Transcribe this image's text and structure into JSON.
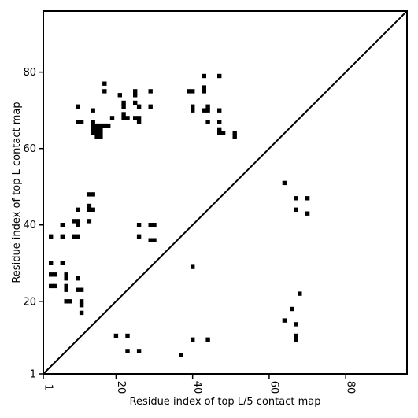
{
  "chart_data": {
    "type": "scatter",
    "title": "",
    "xlabel": "Residue index of top L/5 contact map",
    "ylabel": "Residue index of top L contact map",
    "xlim": [
      1,
      96
    ],
    "ylim": [
      1,
      96
    ],
    "x_ticks": [
      1,
      20,
      40,
      60,
      80
    ],
    "y_ticks": [
      1,
      20,
      40,
      60,
      80
    ],
    "x_tick_labels": [
      "1",
      "20",
      "40",
      "60",
      "80"
    ],
    "y_tick_labels": [
      "1",
      "20",
      "40",
      "60",
      "80"
    ],
    "marker": "square",
    "marker_color": "#000000",
    "diagonal_line": true,
    "grid": false,
    "series": [
      {
        "name": "",
        "points": [
          [
            17,
            77
          ],
          [
            17,
            75
          ],
          [
            21,
            74
          ],
          [
            25,
            75
          ],
          [
            25,
            74
          ],
          [
            29,
            75
          ],
          [
            22,
            72
          ],
          [
            22,
            71
          ],
          [
            25,
            72
          ],
          [
            26,
            71
          ],
          [
            29,
            71
          ],
          [
            10,
            71
          ],
          [
            14,
            70
          ],
          [
            22,
            69
          ],
          [
            22,
            68
          ],
          [
            23,
            68
          ],
          [
            19,
            68
          ],
          [
            25,
            68
          ],
          [
            26,
            68
          ],
          [
            26,
            67
          ],
          [
            10,
            67
          ],
          [
            11,
            67
          ],
          [
            14,
            67
          ],
          [
            14,
            66
          ],
          [
            15,
            66
          ],
          [
            16,
            66
          ],
          [
            17,
            66
          ],
          [
            18,
            66
          ],
          [
            14,
            65
          ],
          [
            15,
            65
          ],
          [
            16,
            65
          ],
          [
            14,
            64
          ],
          [
            15,
            64
          ],
          [
            16,
            64
          ],
          [
            15,
            63
          ],
          [
            16,
            63
          ],
          [
            43,
            79
          ],
          [
            47,
            79
          ],
          [
            43,
            76
          ],
          [
            43,
            75
          ],
          [
            39,
            75
          ],
          [
            40,
            75
          ],
          [
            40,
            71
          ],
          [
            40,
            70
          ],
          [
            43,
            70
          ],
          [
            44,
            70
          ],
          [
            44,
            71
          ],
          [
            47,
            70
          ],
          [
            44,
            67
          ],
          [
            47,
            67
          ],
          [
            47,
            65
          ],
          [
            47,
            64
          ],
          [
            48,
            64
          ],
          [
            51,
            64
          ],
          [
            51,
            63
          ],
          [
            13,
            48
          ],
          [
            14,
            48
          ],
          [
            10,
            44
          ],
          [
            13,
            45
          ],
          [
            13,
            44
          ],
          [
            14,
            44
          ],
          [
            13,
            41
          ],
          [
            9,
            41
          ],
          [
            10,
            41
          ],
          [
            10,
            40
          ],
          [
            6,
            40
          ],
          [
            26,
            40
          ],
          [
            29,
            40
          ],
          [
            30,
            40
          ],
          [
            3,
            37
          ],
          [
            6,
            37
          ],
          [
            9,
            37
          ],
          [
            10,
            37
          ],
          [
            26,
            37
          ],
          [
            29,
            36
          ],
          [
            30,
            36
          ],
          [
            3,
            30
          ],
          [
            6,
            30
          ],
          [
            40,
            29
          ],
          [
            3,
            27
          ],
          [
            4,
            27
          ],
          [
            7,
            27
          ],
          [
            7,
            26
          ],
          [
            10,
            26
          ],
          [
            3,
            24
          ],
          [
            4,
            24
          ],
          [
            7,
            24
          ],
          [
            7,
            23
          ],
          [
            10,
            23
          ],
          [
            11,
            23
          ],
          [
            7,
            20
          ],
          [
            8,
            20
          ],
          [
            11,
            20
          ],
          [
            11,
            19
          ],
          [
            11,
            17
          ],
          [
            64,
            51
          ],
          [
            67,
            47
          ],
          [
            70,
            47
          ],
          [
            67,
            44
          ],
          [
            70,
            43
          ],
          [
            68,
            22
          ],
          [
            66,
            18
          ],
          [
            64,
            15
          ],
          [
            67,
            14
          ],
          [
            67,
            11
          ],
          [
            67,
            10
          ],
          [
            20,
            11
          ],
          [
            23,
            11
          ],
          [
            40,
            10
          ],
          [
            44,
            10
          ],
          [
            23,
            7
          ],
          [
            26,
            7
          ],
          [
            37,
            6
          ]
        ]
      }
    ]
  }
}
